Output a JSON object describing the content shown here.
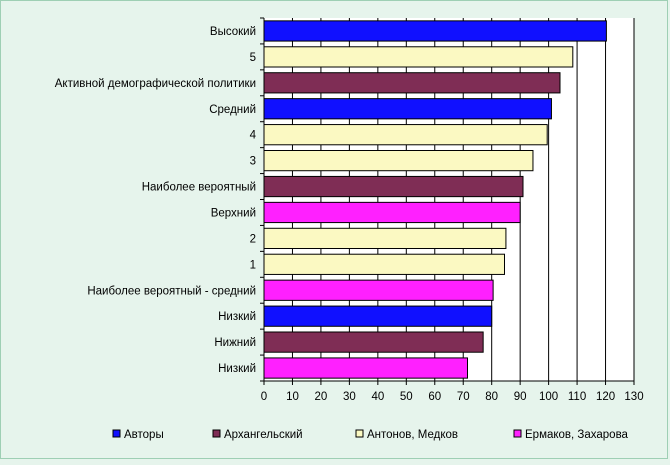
{
  "chart_data": {
    "type": "bar",
    "orientation": "horizontal",
    "xlim": [
      0,
      130
    ],
    "x_ticks": [
      0,
      10,
      20,
      30,
      40,
      50,
      60,
      70,
      80,
      90,
      100,
      110,
      120,
      130
    ],
    "grid": "vertical",
    "legend_position": "bottom",
    "bars": [
      {
        "label": "Высокий",
        "value": 120.3,
        "series": 0
      },
      {
        "label": "5",
        "value": 108.5,
        "series": 2
      },
      {
        "label": "Активной демографической политики",
        "value": 104,
        "series": 1
      },
      {
        "label": "Средний",
        "value": 101,
        "series": 0
      },
      {
        "label": "4",
        "value": 99.5,
        "series": 2
      },
      {
        "label": "3",
        "value": 94.5,
        "series": 2
      },
      {
        "label": "Наиболее вероятный",
        "value": 91,
        "series": 1
      },
      {
        "label": "Верхний",
        "value": 90,
        "series": 3
      },
      {
        "label": "2",
        "value": 85,
        "series": 2
      },
      {
        "label": "1",
        "value": 84.5,
        "series": 2
      },
      {
        "label": "Наиболее вероятный - средний",
        "value": 80.5,
        "series": 3
      },
      {
        "label": "Низкий",
        "value": 80,
        "series": 0
      },
      {
        "label": "Нижний",
        "value": 77,
        "series": 1
      },
      {
        "label": "Низкий",
        "value": 71.5,
        "series": 3
      }
    ],
    "series": [
      {
        "name": "Авторы",
        "color": "#1010ff"
      },
      {
        "name": "Архангельский",
        "color": "#7f2d55"
      },
      {
        "name": "Антонов, Медков",
        "color": "#fbf9c2"
      },
      {
        "name": "Ермаков, Захарова",
        "color": "#ff20ff"
      }
    ]
  }
}
